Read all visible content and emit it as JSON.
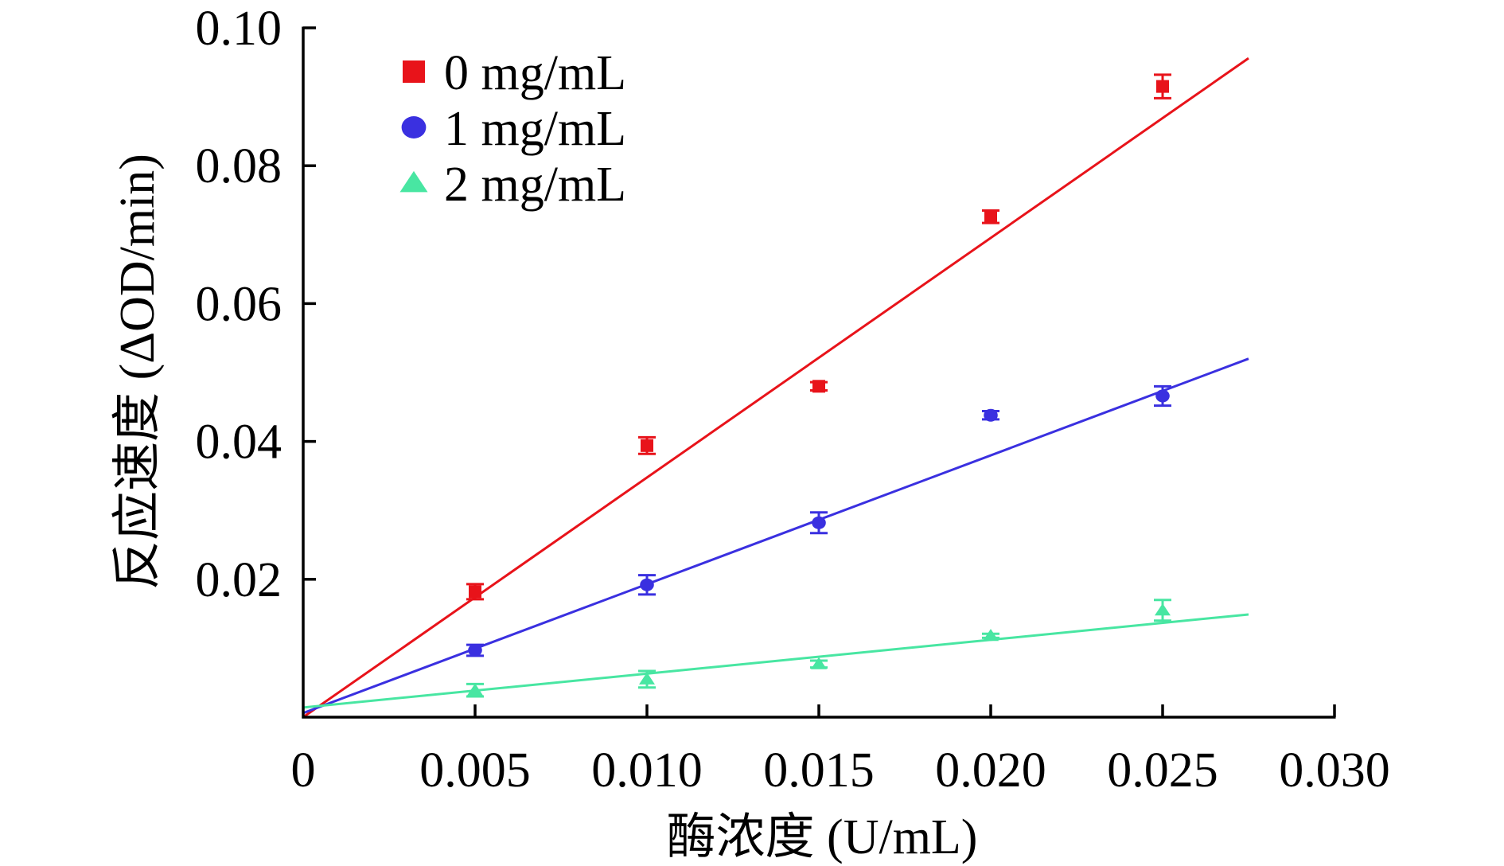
{
  "chart_data": {
    "type": "scatter",
    "title": "",
    "xlabel": "酶浓度 (U/mL)",
    "ylabel": "反应速度 (ΔOD/min)",
    "xlim": [
      0,
      0.03
    ],
    "ylim": [
      0,
      0.1
    ],
    "xticks": [
      0,
      0.005,
      0.01,
      0.015,
      0.02,
      0.025,
      0.03
    ],
    "xtick_labels": [
      "0",
      "0.005",
      "0.010",
      "0.015",
      "0.020",
      "0.025",
      "0.030"
    ],
    "yticks": [
      0.02,
      0.04,
      0.06,
      0.08,
      0.1
    ],
    "ytick_labels": [
      "0.02",
      "0.04",
      "0.06",
      "0.08",
      "0.10"
    ],
    "grid": false,
    "legend_position": "top-left",
    "x": [
      0.005,
      0.01,
      0.015,
      0.02,
      0.025
    ],
    "series": [
      {
        "name": "0 mg/mL",
        "color": "#e8131a",
        "marker": "square",
        "values": [
          0.0182,
          0.0394,
          0.048,
          0.0726,
          0.0915
        ],
        "errors": [
          0.0011,
          0.0012,
          0.0006,
          0.0009,
          0.0017
        ],
        "fit_line": {
          "x": [
            0,
            0.0275
          ],
          "y": [
            0.0,
            0.0956
          ]
        }
      },
      {
        "name": "1 mg/mL",
        "color": "#3a30e0",
        "marker": "circle",
        "values": [
          0.0097,
          0.0192,
          0.0282,
          0.0438,
          0.0466
        ],
        "errors": [
          0.0008,
          0.0014,
          0.0015,
          0.0006,
          0.0014
        ],
        "fit_line": {
          "x": [
            0,
            0.0275
          ],
          "y": [
            0.0006,
            0.052
          ]
        }
      },
      {
        "name": "2 mg/mL",
        "color": "#48e6a2",
        "marker": "triangle",
        "values": [
          0.0039,
          0.0055,
          0.0077,
          0.0118,
          0.0155
        ],
        "errors": [
          0.0009,
          0.0012,
          0.0005,
          0.0003,
          0.0015
        ],
        "fit_line": {
          "x": [
            0,
            0.0275
          ],
          "y": [
            0.0014,
            0.0149
          ]
        }
      }
    ]
  }
}
